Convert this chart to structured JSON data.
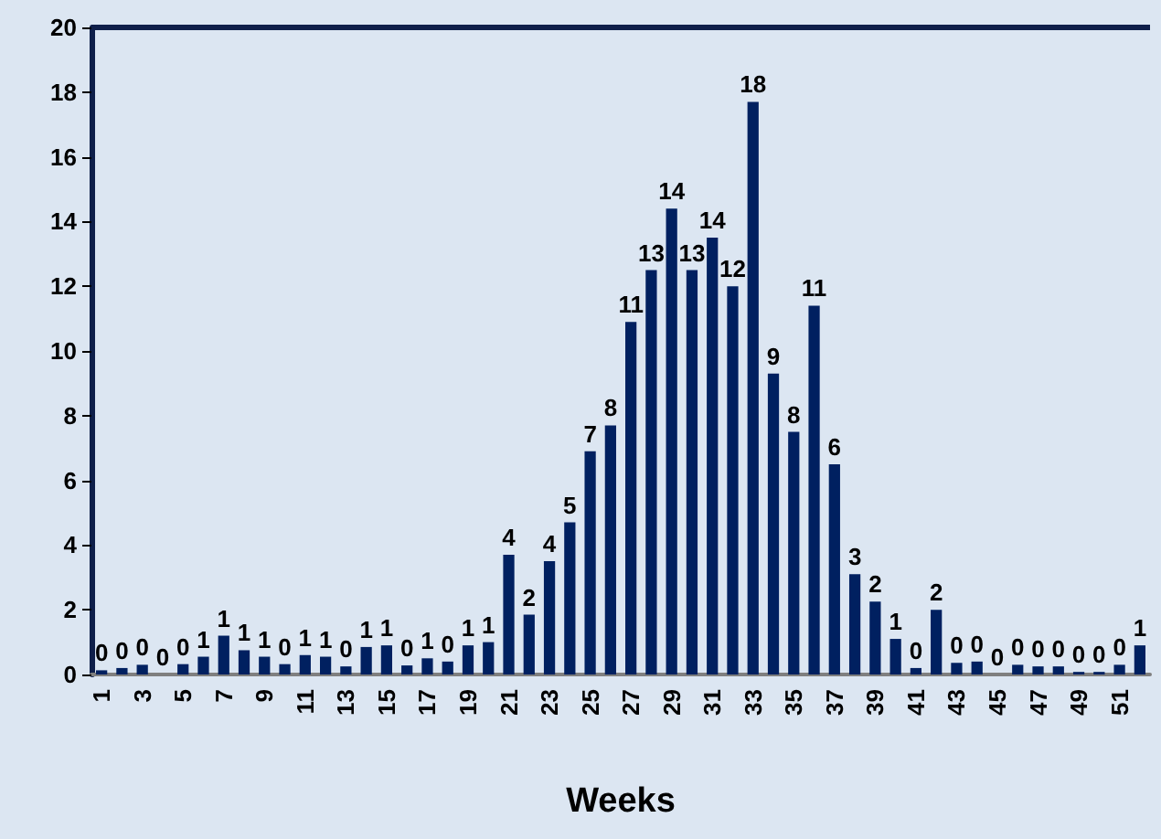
{
  "chart_data": {
    "type": "bar",
    "xlabel": "Weeks",
    "categories": [
      "1",
      null,
      "3",
      null,
      "5",
      null,
      "7",
      null,
      "9",
      null,
      "11",
      null,
      "13",
      null,
      "15",
      null,
      "17",
      null,
      "19",
      null,
      "21",
      null,
      "23",
      null,
      "25",
      null,
      "27",
      null,
      "29",
      null,
      "31",
      null,
      "33",
      null,
      "35",
      null,
      "37",
      null,
      "39",
      null,
      "41",
      null,
      "43",
      null,
      "45",
      null,
      "47",
      null,
      "49",
      null,
      "51",
      null
    ],
    "values": [
      0.13,
      0.2,
      0.3,
      0,
      0.32,
      0.55,
      1.2,
      0.75,
      0.55,
      0.32,
      0.6,
      0.55,
      0.25,
      0.85,
      0.9,
      0.28,
      0.5,
      0.4,
      0.9,
      1.0,
      3.7,
      1.85,
      3.5,
      4.7,
      6.9,
      7.7,
      10.9,
      12.5,
      14.4,
      12.5,
      13.5,
      12.0,
      17.7,
      9.3,
      7.5,
      11.4,
      6.5,
      3.1,
      2.25,
      1.1,
      0.2,
      2.0,
      0.36,
      0.4,
      0,
      0.3,
      0.25,
      0.25,
      0.08,
      0.08,
      0.3,
      0.9
    ],
    "value_labels": [
      "0",
      "0",
      "0",
      "0",
      "0",
      "1",
      "1",
      "1",
      "1",
      "0",
      "1",
      "1",
      "0",
      "1",
      "1",
      "0",
      "1",
      "0",
      "1",
      "1",
      "4",
      "2",
      "4",
      "5",
      "7",
      "8",
      "11",
      "13",
      "14",
      "13",
      "14",
      "12",
      "18",
      "9",
      "8",
      "11",
      "6",
      "3",
      "2",
      "1",
      "0",
      "2",
      "0",
      "0",
      "0",
      "0",
      "0",
      "0",
      "0",
      "0",
      "0",
      "1"
    ],
    "color": "#002060",
    "ylim": [
      0,
      20
    ],
    "yticks": [
      0,
      2,
      4,
      6,
      8,
      10,
      12,
      14,
      16,
      18,
      20
    ]
  }
}
